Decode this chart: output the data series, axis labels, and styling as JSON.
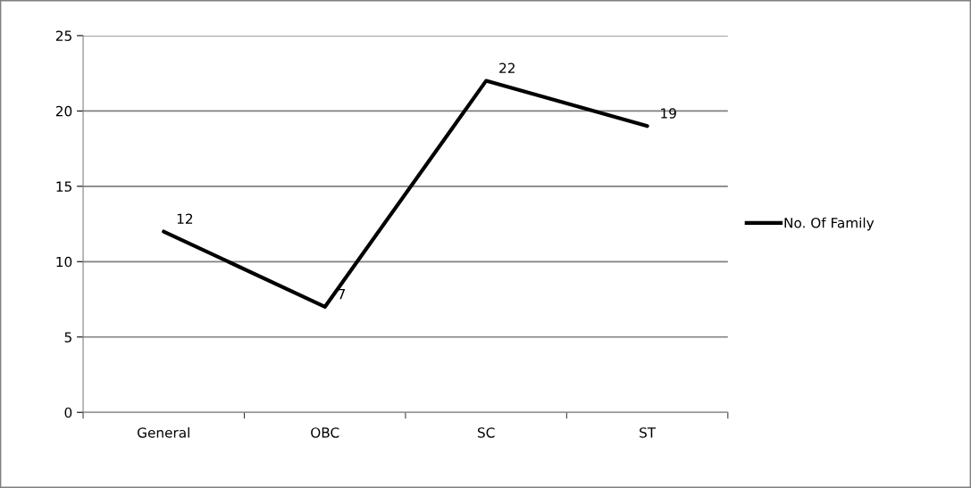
{
  "chart_data": {
    "type": "line",
    "categories": [
      "General",
      "OBC",
      "SC",
      "ST"
    ],
    "series": [
      {
        "name": "No. Of Family",
        "color": "#000000",
        "values": [
          12,
          7,
          22,
          19
        ]
      }
    ],
    "ylim": [
      0,
      25
    ],
    "yticks": [
      0,
      5,
      10,
      15,
      20,
      25
    ],
    "grid": "y",
    "legend": "right",
    "data_labels": true,
    "marker": "none",
    "line_style": "solid"
  }
}
